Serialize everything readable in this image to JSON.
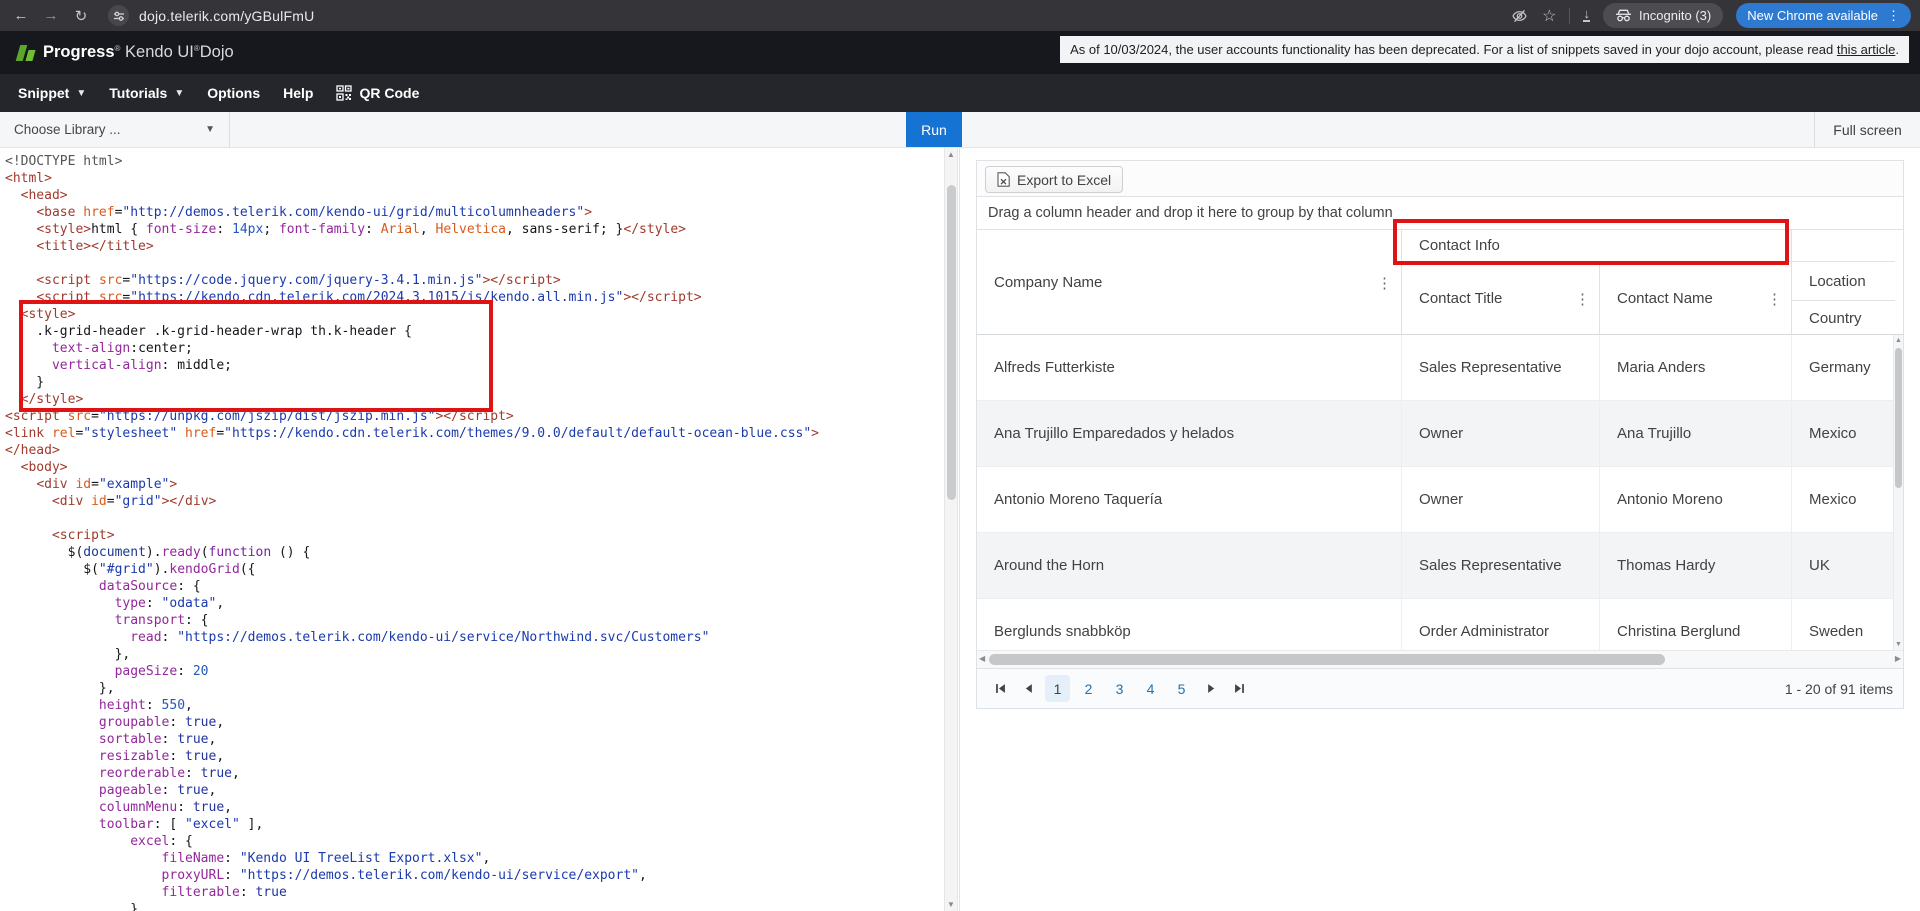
{
  "browser": {
    "url": "dojo.telerik.com/yGBulFmU",
    "incognito": "Incognito (3)",
    "new_chrome": "New Chrome available"
  },
  "header": {
    "brand_bold": "Progress",
    "brand_mid": "Kendo UI",
    "brand_last": "Dojo",
    "reg": "®",
    "notice_pre": "As of 10/03/2024, the user accounts functionality has been deprecated. For a list of snippets saved in your dojo account, please read ",
    "notice_link": "this article",
    "notice_post": "."
  },
  "menu": {
    "snippet": "Snippet",
    "tutorials": "Tutorials",
    "options": "Options",
    "help": "Help",
    "qr": "QR Code"
  },
  "toolbar": {
    "library": "Choose Library ...",
    "run": "Run",
    "fullscreen": "Full screen"
  },
  "editor": {
    "lines": [
      [
        [
          "meta",
          "<!DOCTYPE html>"
        ]
      ],
      [
        [
          "tag",
          "<html>"
        ]
      ],
      [
        [
          "pln",
          "  "
        ],
        [
          "tag",
          "<head>"
        ]
      ],
      [
        [
          "pln",
          "    "
        ],
        [
          "tag",
          "<base "
        ],
        [
          "attr",
          "href"
        ],
        [
          "pln",
          "="
        ],
        [
          "str",
          "\"http://demos.telerik.com/kendo-ui/grid/multicolumnheaders\""
        ],
        [
          "tag",
          ">"
        ]
      ],
      [
        [
          "pln",
          "    "
        ],
        [
          "tag",
          "<style>"
        ],
        [
          "pln",
          "html { "
        ],
        [
          "prop",
          "font-size"
        ],
        [
          "pln",
          ": "
        ],
        [
          "num",
          "14px"
        ],
        [
          "pln",
          "; "
        ],
        [
          "prop",
          "font-family"
        ],
        [
          "pln",
          ": "
        ],
        [
          "attr",
          "Arial"
        ],
        [
          "pln",
          ", "
        ],
        [
          "attr",
          "Helvetica"
        ],
        [
          "pln",
          ", sans-serif; }"
        ],
        [
          "tag",
          "</style>"
        ]
      ],
      [
        [
          "pln",
          "    "
        ],
        [
          "tag",
          "<title></title>"
        ]
      ],
      [],
      [
        [
          "pln",
          "    "
        ],
        [
          "tag",
          "<script "
        ],
        [
          "attr",
          "src"
        ],
        [
          "pln",
          "="
        ],
        [
          "str",
          "\"https://code.jquery.com/jquery-3.4.1.min.js\""
        ],
        [
          "tag",
          "></script>"
        ]
      ],
      [
        [
          "pln",
          "    "
        ],
        [
          "tag",
          "<script "
        ],
        [
          "attr",
          "src"
        ],
        [
          "pln",
          "="
        ],
        [
          "str",
          "\"https://kendo.cdn.telerik.com/2024.3.1015/js/kendo.all.min.js\""
        ],
        [
          "tag",
          "></script>"
        ]
      ],
      [
        [
          "pln",
          "  "
        ],
        [
          "tag",
          "<style>"
        ]
      ],
      [
        [
          "pln",
          "    .k-grid-header .k-grid-header-wrap th.k-header {"
        ]
      ],
      [
        [
          "pln",
          "      "
        ],
        [
          "prop",
          "text-align"
        ],
        [
          "pln",
          ":center;"
        ]
      ],
      [
        [
          "pln",
          "      "
        ],
        [
          "prop",
          "vertical-align"
        ],
        [
          "pln",
          ": middle;"
        ]
      ],
      [
        [
          "pln",
          "    }"
        ]
      ],
      [
        [
          "pln",
          "  "
        ],
        [
          "tag",
          "</style>"
        ]
      ],
      [
        [
          "tag",
          "<script "
        ],
        [
          "attr",
          "src"
        ],
        [
          "pln",
          "="
        ],
        [
          "str",
          "\"https://unpkg.com/jszip/dist/jszip.min.js\""
        ],
        [
          "tag",
          "></script>"
        ]
      ],
      [
        [
          "tag",
          "<link "
        ],
        [
          "attr",
          "rel"
        ],
        [
          "pln",
          "="
        ],
        [
          "str",
          "\"stylesheet\""
        ],
        [
          "pln",
          " "
        ],
        [
          "attr",
          "href"
        ],
        [
          "pln",
          "="
        ],
        [
          "str",
          "\"https://kendo.cdn.telerik.com/themes/9.0.0/default/default-ocean-blue.css\""
        ],
        [
          "tag",
          ">"
        ]
      ],
      [
        [
          "tag",
          "</head>"
        ]
      ],
      [
        [
          "pln",
          "  "
        ],
        [
          "tag",
          "<body>"
        ]
      ],
      [
        [
          "pln",
          "    "
        ],
        [
          "tag",
          "<div "
        ],
        [
          "attr",
          "id"
        ],
        [
          "pln",
          "="
        ],
        [
          "str",
          "\"example\""
        ],
        [
          "tag",
          ">"
        ]
      ],
      [
        [
          "pln",
          "      "
        ],
        [
          "tag",
          "<div "
        ],
        [
          "attr",
          "id"
        ],
        [
          "pln",
          "="
        ],
        [
          "str",
          "\"grid\""
        ],
        [
          "tag",
          "></div>"
        ]
      ],
      [],
      [
        [
          "pln",
          "      "
        ],
        [
          "tag",
          "<script>"
        ]
      ],
      [
        [
          "pln",
          "        $("
        ],
        [
          "var",
          "document"
        ],
        [
          "pln",
          ")."
        ],
        [
          "prop",
          "ready"
        ],
        [
          "pln",
          "("
        ],
        [
          "kw",
          "function"
        ],
        [
          "pln",
          " () {"
        ]
      ],
      [
        [
          "pln",
          "          $("
        ],
        [
          "str",
          "\"#grid\""
        ],
        [
          "pln",
          ")."
        ],
        [
          "prop",
          "kendoGrid"
        ],
        [
          "pln",
          "({"
        ]
      ],
      [
        [
          "pln",
          "            "
        ],
        [
          "prop",
          "dataSource"
        ],
        [
          "pln",
          ": {"
        ]
      ],
      [
        [
          "pln",
          "              "
        ],
        [
          "prop",
          "type"
        ],
        [
          "pln",
          ": "
        ],
        [
          "str",
          "\"odata\""
        ],
        [
          "pln",
          ","
        ]
      ],
      [
        [
          "pln",
          "              "
        ],
        [
          "prop",
          "transport"
        ],
        [
          "pln",
          ": {"
        ]
      ],
      [
        [
          "pln",
          "                "
        ],
        [
          "prop",
          "read"
        ],
        [
          "pln",
          ": "
        ],
        [
          "str",
          "\"https://demos.telerik.com/kendo-ui/service/Northwind.svc/Customers\""
        ]
      ],
      [
        [
          "pln",
          "              },"
        ]
      ],
      [
        [
          "pln",
          "              "
        ],
        [
          "prop",
          "pageSize"
        ],
        [
          "pln",
          ": "
        ],
        [
          "num",
          "20"
        ]
      ],
      [
        [
          "pln",
          "            },"
        ]
      ],
      [
        [
          "pln",
          "            "
        ],
        [
          "prop",
          "height"
        ],
        [
          "pln",
          ": "
        ],
        [
          "num",
          "550"
        ],
        [
          "pln",
          ","
        ]
      ],
      [
        [
          "pln",
          "            "
        ],
        [
          "prop",
          "groupable"
        ],
        [
          "pln",
          ": "
        ],
        [
          "atom",
          "true"
        ],
        [
          "pln",
          ","
        ]
      ],
      [
        [
          "pln",
          "            "
        ],
        [
          "prop",
          "sortable"
        ],
        [
          "pln",
          ": "
        ],
        [
          "atom",
          "true"
        ],
        [
          "pln",
          ","
        ]
      ],
      [
        [
          "pln",
          "            "
        ],
        [
          "prop",
          "resizable"
        ],
        [
          "pln",
          ": "
        ],
        [
          "atom",
          "true"
        ],
        [
          "pln",
          ","
        ]
      ],
      [
        [
          "pln",
          "            "
        ],
        [
          "prop",
          "reorderable"
        ],
        [
          "pln",
          ": "
        ],
        [
          "atom",
          "true"
        ],
        [
          "pln",
          ","
        ]
      ],
      [
        [
          "pln",
          "            "
        ],
        [
          "prop",
          "pageable"
        ],
        [
          "pln",
          ": "
        ],
        [
          "atom",
          "true"
        ],
        [
          "pln",
          ","
        ]
      ],
      [
        [
          "pln",
          "            "
        ],
        [
          "prop",
          "columnMenu"
        ],
        [
          "pln",
          ": "
        ],
        [
          "atom",
          "true"
        ],
        [
          "pln",
          ","
        ]
      ],
      [
        [
          "pln",
          "            "
        ],
        [
          "prop",
          "toolbar"
        ],
        [
          "pln",
          ": [ "
        ],
        [
          "str",
          "\"excel\""
        ],
        [
          "pln",
          " ],"
        ]
      ],
      [
        [
          "pln",
          "                "
        ],
        [
          "prop",
          "excel"
        ],
        [
          "pln",
          ": {"
        ]
      ],
      [
        [
          "pln",
          "                    "
        ],
        [
          "prop",
          "fileName"
        ],
        [
          "pln",
          ": "
        ],
        [
          "str",
          "\"Kendo UI TreeList Export.xlsx\""
        ],
        [
          "pln",
          ","
        ]
      ],
      [
        [
          "pln",
          "                    "
        ],
        [
          "prop",
          "proxyURL"
        ],
        [
          "pln",
          ": "
        ],
        [
          "str",
          "\"https://demos.telerik.com/kendo-ui/service/export\""
        ],
        [
          "pln",
          ","
        ]
      ],
      [
        [
          "pln",
          "                    "
        ],
        [
          "prop",
          "filterable"
        ],
        [
          "pln",
          ": "
        ],
        [
          "atom",
          "true"
        ]
      ],
      [
        [
          "pln",
          "                }"
        ]
      ]
    ]
  },
  "preview": {
    "export_label": "Export to Excel",
    "group_hint": "Drag a column header and drop it here to group by that column",
    "columns": {
      "company": "Company Name",
      "contact_group": "Contact Info",
      "contact_title": "Contact Title",
      "contact_name": "Contact Name",
      "location_group": "Location",
      "country": "Country"
    },
    "rows": [
      {
        "company": "Alfreds Futterkiste",
        "title": "Sales Representative",
        "name": "Maria Anders",
        "country": "Germany"
      },
      {
        "company": "Ana Trujillo Emparedados y helados",
        "title": "Owner",
        "name": "Ana Trujillo",
        "country": "Mexico"
      },
      {
        "company": "Antonio Moreno Taquería",
        "title": "Owner",
        "name": "Antonio Moreno",
        "country": "Mexico"
      },
      {
        "company": "Around the Horn",
        "title": "Sales Representative",
        "name": "Thomas Hardy",
        "country": "UK"
      },
      {
        "company": "Berglunds snabbköp",
        "title": "Order Administrator",
        "name": "Christina Berglund",
        "country": "Sweden"
      }
    ],
    "pager": {
      "pages": [
        "1",
        "2",
        "3",
        "4",
        "5"
      ],
      "current": "1",
      "info": "1 - 20 of 91 items"
    }
  },
  "colors": {
    "accent_blue": "#1573d4",
    "annotation_red": "#df1313",
    "brand_green": "#5ba829",
    "pager_link": "#2670ad",
    "chrome_pill_blue": "#2d7ad0"
  }
}
